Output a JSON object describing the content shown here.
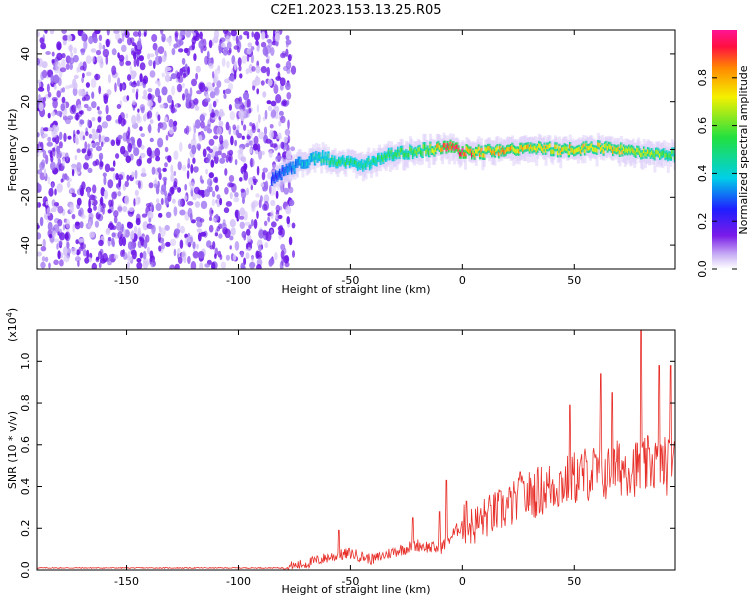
{
  "figure": {
    "title": "C2E1.2023.153.13.25.R05"
  },
  "colors": {
    "snr_line": "#e8302a",
    "noise_purple": "#6a0dde",
    "colormap": [
      "#ffffff",
      "#c9b0f5",
      "#7a1be8",
      "#1f1fff",
      "#00cfe8",
      "#22e040",
      "#f5f000",
      "#ff8a00",
      "#ff1040",
      "#ff1493"
    ]
  },
  "chart_data": [
    {
      "type": "heatmap",
      "xlabel": "Height of straight line (km)",
      "ylabel": "Frequency (Hz)",
      "xlim": [
        -190,
        95
      ],
      "ylim": [
        -50,
        50
      ],
      "x_ticks": [
        -150,
        -100,
        -50,
        0,
        50
      ],
      "x_tick_labels": [
        "-150",
        "-100",
        "-50",
        "0",
        "50"
      ],
      "y_ticks": [
        -40,
        -20,
        0,
        20,
        40
      ],
      "y_tick_labels": [
        "-40",
        "-20",
        "0",
        "20",
        "40"
      ],
      "noise_region_x": [
        -190,
        -78
      ],
      "signal_ridge": {
        "x": [
          -85,
          -75,
          -65,
          -55,
          -45,
          -35,
          -25,
          -15,
          -5,
          0,
          10,
          20,
          30,
          40,
          50,
          60,
          70,
          80,
          95
        ],
        "freq": [
          -12,
          -7,
          -3,
          -5,
          -7,
          -3,
          -1,
          0,
          1,
          -1,
          -1,
          0,
          1,
          0,
          0,
          1,
          0,
          -1,
          -2
        ],
        "amplitude": [
          0.25,
          0.35,
          0.45,
          0.55,
          0.5,
          0.55,
          0.6,
          0.7,
          1.0,
          1.0,
          0.8,
          0.85,
          0.8,
          0.75,
          0.8,
          0.75,
          0.8,
          0.75,
          0.6
        ]
      },
      "colorbar": {
        "label": "Normalized spectral amplitude",
        "range": [
          0,
          1
        ],
        "ticks": [
          0.0,
          0.2,
          0.4,
          0.6,
          0.8
        ],
        "tick_labels": [
          "0.0",
          "0.2",
          "0.4",
          "0.6",
          "0.8"
        ]
      }
    },
    {
      "type": "line",
      "xlabel": "Height of straight line (km)",
      "ylabel": "SNR (10 * v/v)",
      "scale_label": "(x10",
      "scale_exponent": "4",
      "scale_close": ")",
      "xlim": [
        -190,
        95
      ],
      "ylim": [
        0,
        1.15
      ],
      "x_ticks": [
        -150,
        -100,
        -50,
        0,
        50
      ],
      "x_tick_labels": [
        "-150",
        "-100",
        "-50",
        "0",
        "50"
      ],
      "y_ticks": [
        0.0,
        0.2,
        0.4,
        0.6,
        0.8,
        1.0
      ],
      "y_tick_labels": [
        "0.0",
        "0.2",
        "0.4",
        "0.6",
        "0.8",
        "1.0"
      ],
      "series": [
        {
          "x": [
            -190,
            -150,
            -100,
            -80,
            -70,
            -60,
            -50,
            -40,
            -30,
            -20,
            -10,
            -5,
            0,
            5,
            10,
            20,
            30,
            40,
            50,
            55,
            60,
            65,
            70,
            75,
            80,
            85,
            90,
            95
          ],
          "y": [
            0.01,
            0.01,
            0.01,
            0.01,
            0.03,
            0.06,
            0.08,
            0.05,
            0.09,
            0.12,
            0.1,
            0.16,
            0.22,
            0.21,
            0.25,
            0.3,
            0.36,
            0.4,
            0.44,
            0.46,
            0.47,
            0.46,
            0.49,
            0.5,
            0.48,
            0.52,
            0.5,
            0.5
          ],
          "peaks": [
            {
              "x": -55,
              "y": 0.19
            },
            {
              "x": -22,
              "y": 0.25
            },
            {
              "x": -10,
              "y": 0.28
            },
            {
              "x": -7,
              "y": 0.43
            },
            {
              "x": 2,
              "y": 0.33
            },
            {
              "x": 26,
              "y": 0.47
            },
            {
              "x": 48,
              "y": 0.79
            },
            {
              "x": 62,
              "y": 0.94
            },
            {
              "x": 67,
              "y": 0.85
            },
            {
              "x": 80,
              "y": 1.15
            },
            {
              "x": 88,
              "y": 0.98
            },
            {
              "x": 93,
              "y": 0.98
            }
          ]
        }
      ]
    }
  ]
}
